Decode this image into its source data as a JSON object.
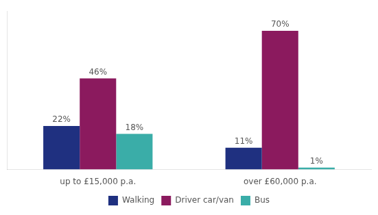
{
  "chart_data": {
    "type": "bar",
    "categories": [
      "up to £15,000 p.a.",
      "over £60,000 p.a."
    ],
    "series": [
      {
        "name": "Walking",
        "color": "#1f3080",
        "values": [
          22,
          11
        ],
        "value_labels": [
          "22%",
          "11%"
        ]
      },
      {
        "name": "Driver car/van",
        "color": "#8b1a5e",
        "values": [
          46,
          70
        ],
        "value_labels": [
          "46%",
          "70%"
        ]
      },
      {
        "name": "Bus",
        "color": "#3aada8",
        "values": [
          18,
          1
        ],
        "value_labels": [
          "18%",
          "1%"
        ]
      }
    ],
    "ylim": [
      0,
      80
    ],
    "grid": false,
    "legend": "bottom",
    "data_labels": true,
    "tick_labels": "x"
  }
}
